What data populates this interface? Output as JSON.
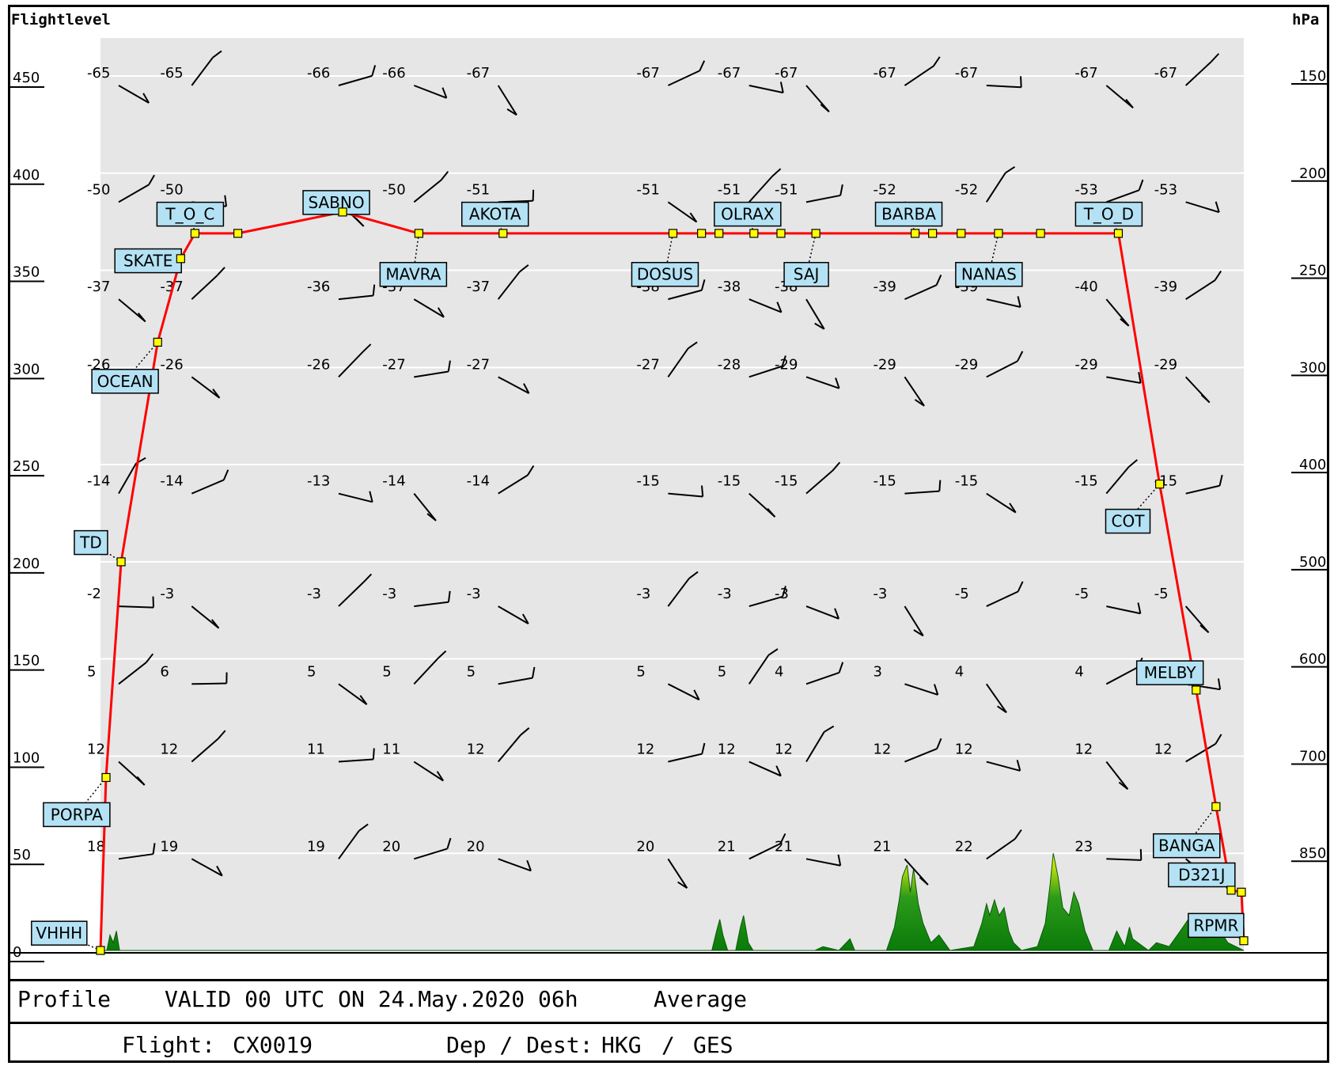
{
  "header": {
    "left_axis_title": "Flightlevel",
    "right_axis_title": "hPa"
  },
  "footer": {
    "profile_label": "Profile",
    "valid_text": "VALID 00 UTC ON 24.May.2020 06h",
    "mode": "Average",
    "flight_label": "Flight:",
    "flight": "CX0019",
    "depdest_label": "Dep / Dest:",
    "dep": "HKG",
    "dest": "GES"
  },
  "chart_data": {
    "type": "line",
    "x_range": [
      0,
      1440
    ],
    "y_range": [
      0,
      475
    ],
    "y_ticks": [
      {
        "fl": 0,
        "label": "0"
      },
      {
        "fl": 50,
        "label": "50"
      },
      {
        "fl": 100,
        "label": "100"
      },
      {
        "fl": 150,
        "label": "150"
      },
      {
        "fl": 200,
        "label": "200"
      },
      {
        "fl": 250,
        "label": "250"
      },
      {
        "fl": 300,
        "label": "300"
      },
      {
        "fl": 350,
        "label": "350"
      },
      {
        "fl": 400,
        "label": "400"
      },
      {
        "fl": 450,
        "label": "450"
      }
    ],
    "pressure_levels": [
      {
        "fl": 50,
        "label": "850"
      },
      {
        "fl": 100,
        "label": "700"
      },
      {
        "fl": 150,
        "label": "600"
      },
      {
        "fl": 200,
        "label": "500"
      },
      {
        "fl": 250,
        "label": "400"
      },
      {
        "fl": 300,
        "label": "300"
      },
      {
        "fl": 350,
        "label": "250"
      },
      {
        "fl": 400,
        "label": "200"
      },
      {
        "fl": 450,
        "label": "150"
      }
    ],
    "route": [
      {
        "x": 0,
        "fl": 0,
        "name": "VHHH",
        "lx": -52,
        "lfl": 15
      },
      {
        "x": 7,
        "fl": 89,
        "name": "PORPA",
        "lx": -30,
        "lfl": 76
      },
      {
        "x": 26,
        "fl": 200,
        "name": "TD",
        "lx": -12,
        "lfl": 216
      },
      {
        "x": 72,
        "fl": 313,
        "name": "OCEAN",
        "lx": 31,
        "lfl": 299
      },
      {
        "x": 101,
        "fl": 356,
        "name": "SKATE",
        "lx": 60,
        "lfl": 361
      },
      {
        "x": 119,
        "fl": 369,
        "name": "T_O_C",
        "lx": 113,
        "lfl": 385
      },
      {
        "x": 173,
        "fl": 369,
        "name": ""
      },
      {
        "x": 305,
        "fl": 380,
        "name": "SABNO",
        "lx": 297,
        "lfl": 391
      },
      {
        "x": 401,
        "fl": 369,
        "name": "MAVRA",
        "lx": 394,
        "lfl": 354
      },
      {
        "x": 507,
        "fl": 369,
        "name": "AKOTA",
        "lx": 497,
        "lfl": 385
      },
      {
        "x": 721,
        "fl": 369,
        "name": "DOSUS",
        "lx": 711,
        "lfl": 354
      },
      {
        "x": 757,
        "fl": 369,
        "name": ""
      },
      {
        "x": 779,
        "fl": 369,
        "name": ""
      },
      {
        "x": 823,
        "fl": 369,
        "name": "OLRAX",
        "lx": 815,
        "lfl": 385
      },
      {
        "x": 857,
        "fl": 369,
        "name": ""
      },
      {
        "x": 901,
        "fl": 369,
        "name": "SAJ",
        "lx": 889,
        "lfl": 354
      },
      {
        "x": 1026,
        "fl": 369,
        "name": "BARBA",
        "lx": 1018,
        "lfl": 385
      },
      {
        "x": 1048,
        "fl": 369,
        "name": ""
      },
      {
        "x": 1084,
        "fl": 369,
        "name": ""
      },
      {
        "x": 1131,
        "fl": 369,
        "name": "NANAS",
        "lx": 1119,
        "lfl": 354
      },
      {
        "x": 1184,
        "fl": 369,
        "name": ""
      },
      {
        "x": 1282,
        "fl": 369,
        "name": "T_O_D",
        "lx": 1270,
        "lfl": 385
      },
      {
        "x": 1334,
        "fl": 240,
        "name": "COT",
        "lx": 1294,
        "lfl": 227
      },
      {
        "x": 1380,
        "fl": 134,
        "name": "MELBY",
        "lx": 1347,
        "lfl": 149
      },
      {
        "x": 1405,
        "fl": 74,
        "name": "BANGA",
        "lx": 1368,
        "lfl": 60
      },
      {
        "x": 1424,
        "fl": 31,
        "name": "D321J",
        "lx": 1387,
        "lfl": 45
      },
      {
        "x": 1437,
        "fl": 30,
        "name": ""
      },
      {
        "x": 1440,
        "fl": 5,
        "name": "RPMR",
        "lx": 1405,
        "lfl": 19
      }
    ],
    "temp_levels": [
      {
        "fl": 450,
        "values": [
          "-65",
          "-65",
          "-66",
          "-66",
          "-67",
          "-67",
          "-67",
          "-67",
          "-67",
          "-67",
          "-67",
          "-67"
        ]
      },
      {
        "fl": 390,
        "values": [
          "-50",
          "-50",
          "",
          "-50",
          "-51",
          "-51",
          "-51",
          "-51",
          "-52",
          "-52",
          "-53",
          "-53"
        ]
      },
      {
        "fl": 340,
        "values": [
          "-37",
          "-37",
          "-36",
          "-37",
          "-37",
          "-38",
          "-38",
          "-38",
          "-39",
          "-39",
          "-40",
          "-39"
        ]
      },
      {
        "fl": 300,
        "values": [
          "-26",
          "-26",
          "-26",
          "-27",
          "-27",
          "-27",
          "-28",
          "-29",
          "-29",
          "-29",
          "-29",
          "-29"
        ]
      },
      {
        "fl": 240,
        "values": [
          "-14",
          "-14",
          "-13",
          "-14",
          "-14",
          "-15",
          "-15",
          "-15",
          "-15",
          "-15",
          "-15",
          "-15"
        ]
      },
      {
        "fl": 182,
        "values": [
          "-2",
          "-3",
          "-3",
          "-3",
          "-3",
          "-3",
          "-3",
          "-3",
          "-3",
          "-5",
          "-5",
          "-5"
        ]
      },
      {
        "fl": 142,
        "values": [
          "5",
          "6",
          "5",
          "5",
          "5",
          "5",
          "5",
          "4",
          "3",
          "4",
          "4",
          ""
        ]
      },
      {
        "fl": 102,
        "values": [
          "12",
          "12",
          "11",
          "11",
          "12",
          "12",
          "12",
          "12",
          "12",
          "12",
          "12",
          "12"
        ]
      },
      {
        "fl": 52,
        "values": [
          "18",
          "19",
          "19",
          "20",
          "20",
          "20",
          "21",
          "21",
          "21",
          "22",
          "23",
          ""
        ]
      }
    ],
    "temp_x": [
      0,
      92,
      277,
      372,
      478,
      692,
      794,
      866,
      990,
      1093,
      1244,
      1344
    ],
    "terrain": [
      [
        0,
        0
      ],
      [
        8,
        0
      ],
      [
        12,
        8
      ],
      [
        16,
        4
      ],
      [
        20,
        10
      ],
      [
        24,
        0
      ],
      [
        770,
        0
      ],
      [
        776,
        10
      ],
      [
        780,
        16
      ],
      [
        784,
        8
      ],
      [
        790,
        0
      ],
      [
        800,
        0
      ],
      [
        806,
        12
      ],
      [
        810,
        18
      ],
      [
        816,
        4
      ],
      [
        822,
        0
      ],
      [
        900,
        0
      ],
      [
        910,
        2
      ],
      [
        930,
        0
      ],
      [
        944,
        6
      ],
      [
        950,
        0
      ],
      [
        990,
        0
      ],
      [
        1000,
        12
      ],
      [
        1006,
        26
      ],
      [
        1010,
        38
      ],
      [
        1016,
        44
      ],
      [
        1020,
        30
      ],
      [
        1024,
        42
      ],
      [
        1030,
        24
      ],
      [
        1036,
        14
      ],
      [
        1046,
        4
      ],
      [
        1056,
        8
      ],
      [
        1070,
        0
      ],
      [
        1100,
        2
      ],
      [
        1110,
        14
      ],
      [
        1116,
        24
      ],
      [
        1120,
        18
      ],
      [
        1126,
        26
      ],
      [
        1132,
        18
      ],
      [
        1138,
        22
      ],
      [
        1144,
        10
      ],
      [
        1150,
        4
      ],
      [
        1160,
        0
      ],
      [
        1180,
        2
      ],
      [
        1190,
        14
      ],
      [
        1196,
        34
      ],
      [
        1200,
        50
      ],
      [
        1206,
        38
      ],
      [
        1212,
        22
      ],
      [
        1220,
        18
      ],
      [
        1226,
        30
      ],
      [
        1232,
        24
      ],
      [
        1240,
        10
      ],
      [
        1250,
        0
      ],
      [
        1270,
        0
      ],
      [
        1280,
        10
      ],
      [
        1290,
        2
      ],
      [
        1296,
        12
      ],
      [
        1300,
        6
      ],
      [
        1320,
        0
      ],
      [
        1330,
        4
      ],
      [
        1346,
        2
      ],
      [
        1360,
        10
      ],
      [
        1370,
        16
      ],
      [
        1380,
        8
      ],
      [
        1390,
        6
      ],
      [
        1400,
        12
      ],
      [
        1410,
        10
      ],
      [
        1420,
        4
      ],
      [
        1440,
        0
      ]
    ],
    "colors": {
      "route_line": "#ff0000",
      "waypoint_fill": "#ffff00",
      "label_fill": "#b4e2f4",
      "plot_bg": "#e6e6e6",
      "terrain_low": "#0a7a0a",
      "terrain_high": "#ffff00"
    },
    "wind_barbs_shown": true
  }
}
